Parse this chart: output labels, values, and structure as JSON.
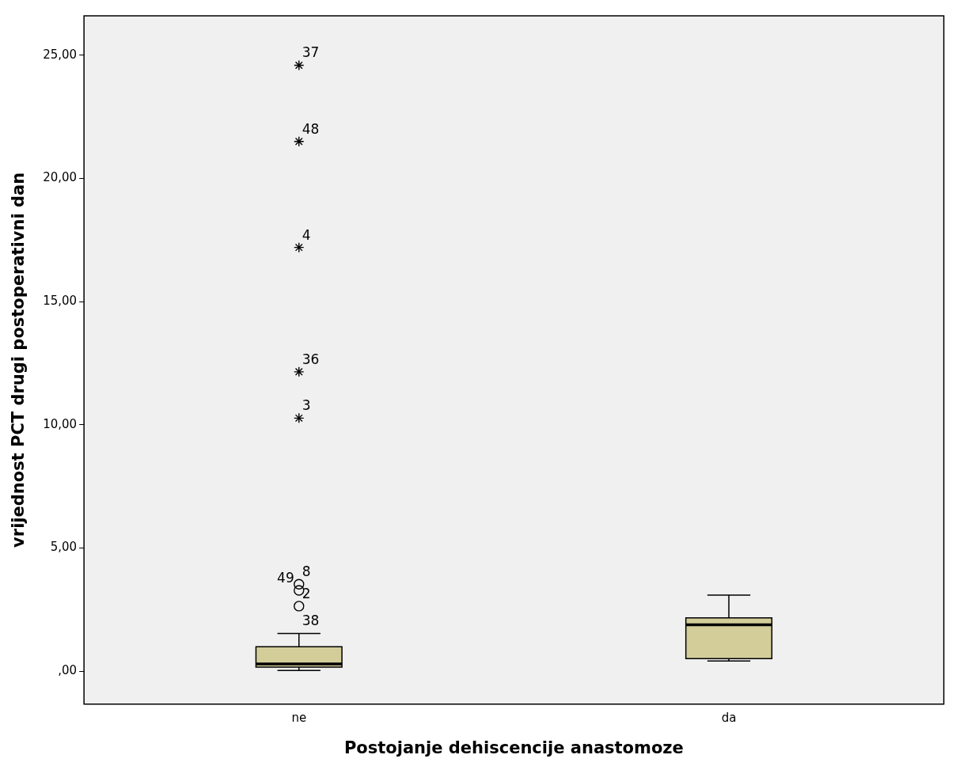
{
  "chart_data": {
    "type": "box",
    "xlabel": "Postojanje dehiscencije anastomoze",
    "ylabel": "vrijednost PCT drugi postoperativni dan",
    "categories": [
      "ne",
      "da"
    ],
    "color": "#d3cd9a",
    "boxes": [
      {
        "low": 0.03,
        "q1": 0.16,
        "median": 0.29,
        "q3": 0.99,
        "high": 1.53
      },
      {
        "low": 0.41,
        "q1": 0.51,
        "median": 1.88,
        "q3": 2.16,
        "high": 3.09
      }
    ],
    "series": [
      {
        "type": "scatter",
        "marker": "cross",
        "color": "#000000",
        "x": [
          "ne",
          "ne",
          "ne",
          "ne",
          "ne"
        ],
        "values": [
          24.59,
          21.5,
          17.2,
          12.15,
          10.27
        ]
      },
      {
        "type": "scatter",
        "marker": "circle",
        "color": "#000000",
        "x": [
          "ne",
          "ne",
          "ne"
        ],
        "values": [
          3.53,
          3.28,
          2.64
        ]
      }
    ],
    "annotations": [
      {
        "text": "37",
        "x": "ne",
        "y": 24.59
      },
      {
        "text": "48",
        "x": "ne",
        "y": 21.5
      },
      {
        "text": "4",
        "x": "ne",
        "y": 17.2
      },
      {
        "text": "36",
        "x": "ne",
        "y": 12.15
      },
      {
        "text": "3",
        "x": "ne",
        "y": 10.27
      },
      {
        "text": "8",
        "x": "ne",
        "y": 3.53
      },
      {
        "text": "49",
        "x": "ne",
        "y": 3.28
      },
      {
        "text": "2",
        "x": "ne",
        "y": 2.64
      },
      {
        "text": "38",
        "x": "ne",
        "y": 1.53
      }
    ],
    "ylim": [
      -1.34,
      26.6
    ],
    "yticks": [
      {
        "value": 0,
        "label": ",00"
      },
      {
        "value": 5,
        "label": "5,00"
      },
      {
        "value": 10,
        "label": "10,00"
      },
      {
        "value": 15,
        "label": "15,00"
      },
      {
        "value": 20,
        "label": "20,00"
      },
      {
        "value": 25,
        "label": "25,00"
      }
    ],
    "grid": false,
    "legend": false
  }
}
